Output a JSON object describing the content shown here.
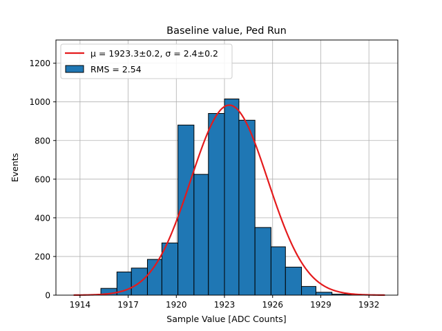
{
  "chart_data": {
    "type": "bar",
    "title": "Baseline value, Ped Run",
    "xlabel": "Sample Value [ADC Counts]",
    "ylabel": "Events",
    "xlim": [
      1912.5,
      1933.8
    ],
    "ylim": [
      0,
      1320
    ],
    "xticks": [
      1914,
      1917,
      1920,
      1923,
      1926,
      1929,
      1932
    ],
    "yticks": [
      0,
      200,
      400,
      600,
      800,
      1000,
      1200
    ],
    "grid": true,
    "legend_position": "top-left",
    "bins": [
      {
        "x0": 1915.3,
        "x1": 1916.3,
        "value": 35
      },
      {
        "x0": 1916.3,
        "x1": 1917.2,
        "value": 120
      },
      {
        "x0": 1917.2,
        "x1": 1918.2,
        "value": 140
      },
      {
        "x0": 1918.2,
        "x1": 1919.1,
        "value": 185
      },
      {
        "x0": 1919.1,
        "x1": 1920.1,
        "value": 270
      },
      {
        "x0": 1920.1,
        "x1": 1921.1,
        "value": 880
      },
      {
        "x0": 1921.1,
        "x1": 1922.0,
        "value": 625
      },
      {
        "x0": 1922.0,
        "x1": 1923.0,
        "value": 940
      },
      {
        "x0": 1923.0,
        "x1": 1923.9,
        "value": 1015
      },
      {
        "x0": 1923.9,
        "x1": 1924.9,
        "value": 905
      },
      {
        "x0": 1924.9,
        "x1": 1925.9,
        "value": 350
      },
      {
        "x0": 1925.9,
        "x1": 1926.8,
        "value": 250
      },
      {
        "x0": 1926.8,
        "x1": 1927.8,
        "value": 145
      },
      {
        "x0": 1927.8,
        "x1": 1928.7,
        "value": 45
      },
      {
        "x0": 1928.7,
        "x1": 1929.7,
        "value": 15
      },
      {
        "x0": 1929.7,
        "x1": 1930.7,
        "value": 5
      },
      {
        "x0": 1930.7,
        "x1": 1931.6,
        "value": 2
      }
    ],
    "fit": {
      "label": "μ = 1923.3±0.2, σ = 2.4±0.2",
      "mu": 1923.3,
      "sigma": 2.4,
      "amplitude": 983,
      "x_range": [
        1913.6,
        1933.0
      ]
    },
    "series": [
      {
        "name": "RMS = 2.54",
        "kind": "histogram"
      },
      {
        "name": "μ = 1923.3±0.2, σ = 2.4±0.2",
        "kind": "fit-line"
      }
    ],
    "colors": {
      "bar_fill": "#1f77b4",
      "bar_edge": "#000000",
      "fit_line": "#e41a1c",
      "grid": "#b0b0b0"
    }
  }
}
